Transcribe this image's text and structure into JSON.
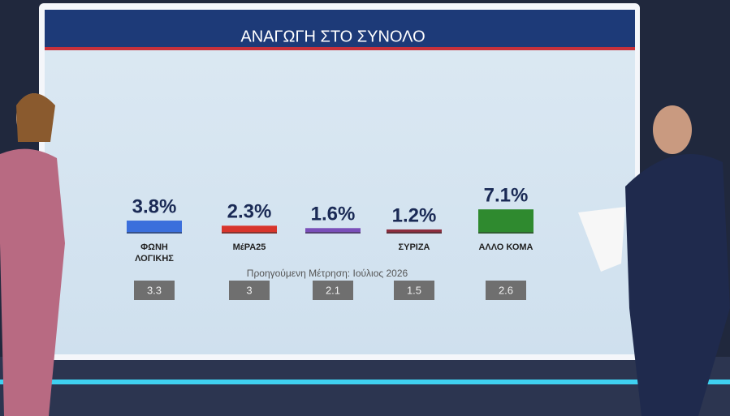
{
  "chart_data": {
    "type": "bar",
    "title": "ΑΝΑΓΩΓΗ ΣΤΟ ΣΥΝΟΛΟ",
    "categories": [
      "ΦΩΝΗ ΛΟΓΙΚΗΣ",
      "ΜέΡΑ25",
      null,
      "ΣΥΡΙΖΑ",
      "ΑΛΛΟ ΚΟΜΑ"
    ],
    "series": [
      {
        "values": [
          3.8,
          2.3,
          1.6,
          1.2,
          7.1
        ],
        "value_labels": [
          "3.8%",
          "2.3%",
          "1.6%",
          "1.2%",
          "7.1%"
        ],
        "colors": [
          "#3b6fdc",
          "#d8352c",
          "#7a4fb9",
          "#8c2d3e",
          "#2f8a2f"
        ]
      },
      {
        "name": "Προηγούμενη Μέτρηση: Ιούλιος 2026",
        "values": [
          3.3,
          3,
          2.1,
          1.5,
          2.6
        ],
        "color": "#6f6f6f"
      }
    ]
  }
}
